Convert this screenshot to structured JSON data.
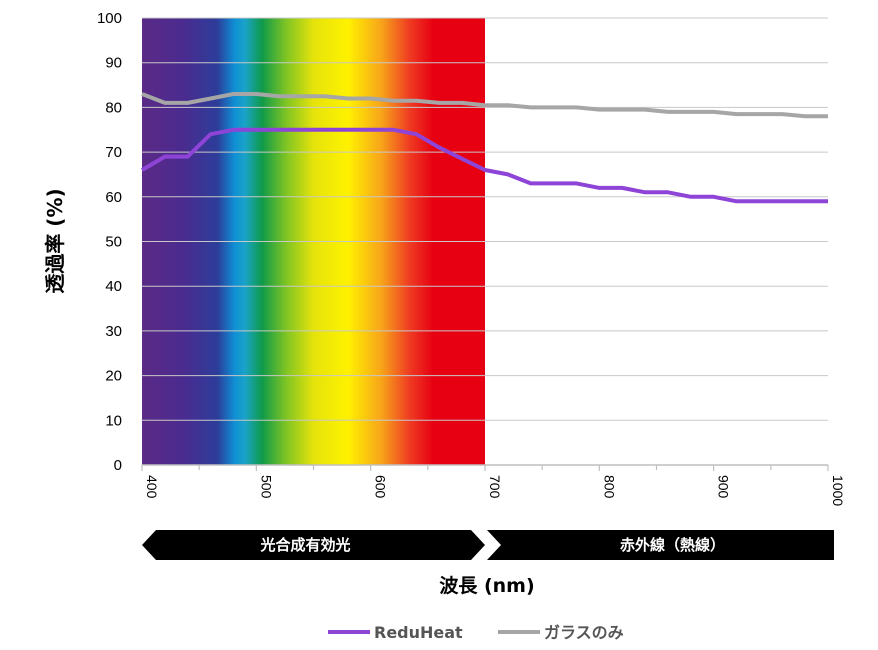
{
  "chart_data": {
    "type": "line",
    "xlabel": "波長 (nm)",
    "ylabel": "透過率 (%)",
    "xlim": [
      400,
      1000
    ],
    "ylim": [
      0,
      100
    ],
    "x_ticks": [
      "400",
      "500",
      "600",
      "700",
      "800",
      "900",
      "1000"
    ],
    "y_ticks": [
      "0",
      "10",
      "20",
      "30",
      "40",
      "50",
      "60",
      "70",
      "80",
      "90",
      "100"
    ],
    "grid": "horizontal",
    "background_band": {
      "from": 400,
      "to": 700,
      "description": "visible spectrum"
    },
    "bands": [
      {
        "label": "光合成有効光",
        "from": 400,
        "to": 700
      },
      {
        "label": "赤外線（熱線）",
        "from": 700,
        "to": 1000
      }
    ],
    "series": [
      {
        "name": "ReduHeat",
        "color": "#8e44d6",
        "x": [
          400,
          420,
          440,
          460,
          480,
          500,
          520,
          540,
          560,
          580,
          600,
          620,
          640,
          660,
          680,
          700,
          720,
          740,
          760,
          780,
          800,
          820,
          840,
          860,
          880,
          900,
          920,
          940,
          960,
          980,
          1000
        ],
        "y": [
          66,
          69,
          69,
          74,
          75,
          75,
          75,
          75,
          75,
          75,
          75,
          75,
          74,
          71,
          68.5,
          66,
          65,
          63,
          63,
          63,
          62,
          62,
          61,
          61,
          60,
          60,
          59,
          59,
          59,
          59,
          59
        ]
      },
      {
        "name": "ガラスのみ",
        "color": "#a6a6a6",
        "x": [
          400,
          420,
          440,
          460,
          480,
          500,
          520,
          540,
          560,
          580,
          600,
          620,
          640,
          660,
          680,
          700,
          720,
          740,
          760,
          780,
          800,
          820,
          840,
          860,
          880,
          900,
          920,
          940,
          960,
          980,
          1000
        ],
        "y": [
          83,
          81,
          81,
          82,
          83,
          83,
          82.5,
          82.5,
          82.5,
          82,
          82,
          81.5,
          81.5,
          81,
          81,
          80.5,
          80.5,
          80,
          80,
          80,
          79.5,
          79.5,
          79.5,
          79,
          79,
          79,
          78.5,
          78.5,
          78.5,
          78,
          78
        ]
      }
    ]
  }
}
